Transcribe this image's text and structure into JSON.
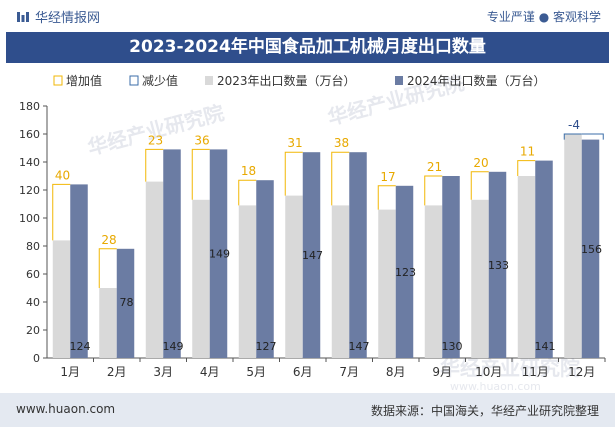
{
  "header": {
    "brand": "华经情报网",
    "slogan": "专业严谨 ● 客观科学"
  },
  "footer": {
    "url": "www.huaon.com",
    "source": "数据来源：中国海关，华经产业研究院整理"
  },
  "watermark": "华经产业研究院",
  "watermark_url": "www.huaon.com",
  "colors": {
    "title_bg": "#2f4e8c",
    "bar_2023": "#d9d9d9",
    "bar_2024": "#6b7ca3",
    "increase": "#f2b705",
    "decrease": "#3b6ea8",
    "footer_bg": "#e4e9f1"
  },
  "chart_data": {
    "type": "bar",
    "title": "2023-2024年中国食品加工机械月度出口数量",
    "categories": [
      "1月",
      "2月",
      "3月",
      "4月",
      "5月",
      "6月",
      "7月",
      "8月",
      "9月",
      "10月",
      "11月",
      "12月"
    ],
    "series": [
      {
        "name": "2023年出口数量（万台）",
        "values": [
          84,
          50,
          126,
          113,
          109,
          116,
          109,
          106,
          109,
          113,
          130,
          160
        ]
      },
      {
        "name": "2024年出口数量（万台）",
        "values": [
          124,
          78,
          149,
          149,
          127,
          147,
          147,
          123,
          130,
          133,
          141,
          156
        ]
      }
    ],
    "changes": [
      40,
      28,
      23,
      36,
      18,
      31,
      38,
      17,
      21,
      20,
      11,
      -4
    ],
    "change_labels": [
      "40",
      "28",
      "23",
      "36",
      "18",
      "31",
      "38",
      "17",
      "21",
      "20",
      "11",
      "-4"
    ],
    "bar_labels": [
      "124",
      "78",
      "149",
      "149",
      "127",
      "147",
      "147",
      "123",
      "130",
      "133",
      "141",
      "156"
    ],
    "legend": [
      "增加值",
      "减少值",
      "2023年出口数量（万台）",
      "2024年出口数量（万台）"
    ],
    "y_ticks": [
      "0",
      "20",
      "40",
      "60",
      "80",
      "100",
      "120",
      "140",
      "160",
      "180"
    ],
    "ylim": [
      0,
      180
    ]
  }
}
